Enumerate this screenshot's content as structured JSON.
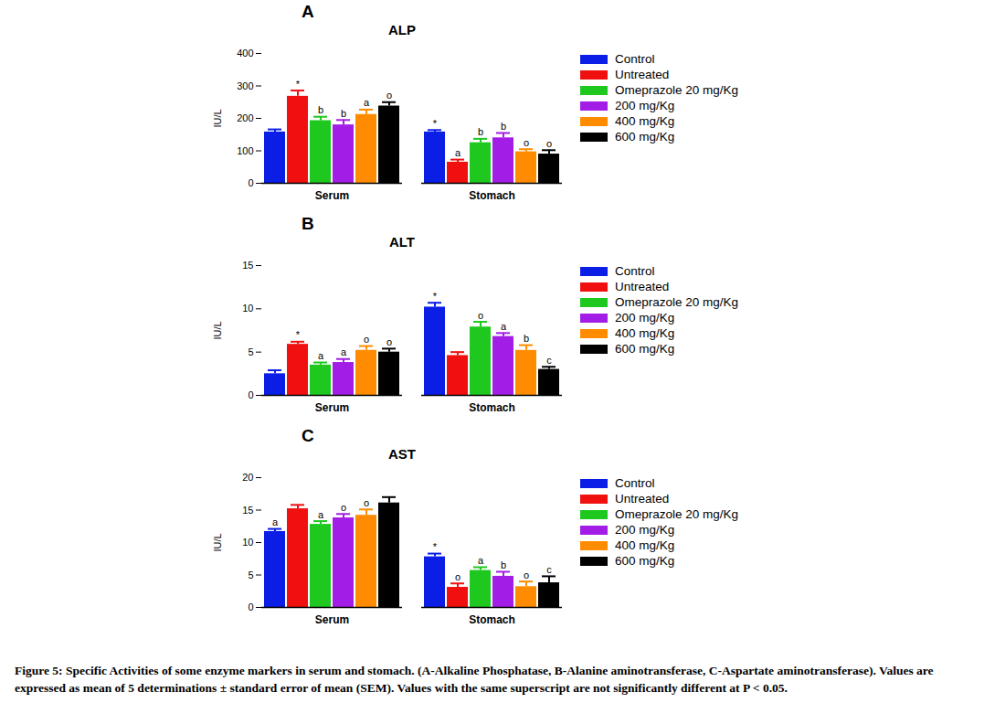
{
  "caption": "Figure 5: Specific Activities of some enzyme markers in serum and stomach. (A-Alkaline Phosphatase, B-Alanine aminotransferase, C-Aspartate aminotransferase). Values are expressed as mean of 5 determinations ± standard error of mean (SEM). Values with the same superscript are not significantly different at P < 0.05.",
  "chart_data": [
    {
      "type": "bar",
      "panel": "A",
      "title": "ALP",
      "y_label": "IU/L",
      "categories": [
        "Serum",
        "Stomach"
      ],
      "ylim": [
        0,
        400
      ],
      "yticks": [
        0,
        100,
        200,
        300,
        400
      ],
      "legend": "right",
      "series": [
        {
          "name": "Control",
          "color": "#0a1ee6",
          "values": [
            158,
            158
          ],
          "errors": [
            8,
            6
          ],
          "superscripts": [
            null,
            "*"
          ]
        },
        {
          "name": "Untreated",
          "color": "#f01010",
          "values": [
            268,
            65
          ],
          "errors": [
            18,
            8
          ],
          "superscripts": [
            "*",
            "a"
          ]
        },
        {
          "name": "Omeprazole 20 mg/Kg",
          "color": "#1ec81e",
          "values": [
            193,
            125
          ],
          "errors": [
            12,
            12
          ],
          "superscripts": [
            "b",
            "b"
          ]
        },
        {
          "name": "200 mg/Kg",
          "color": "#a21ee6",
          "values": [
            180,
            140
          ],
          "errors": [
            15,
            15
          ],
          "superscripts": [
            "b",
            "b"
          ]
        },
        {
          "name": "400 mg/Kg",
          "color": "#ff8c00",
          "values": [
            212,
            97
          ],
          "errors": [
            15,
            8
          ],
          "superscripts": [
            "a",
            "o"
          ]
        },
        {
          "name": "600 mg/Kg",
          "color": "#000000",
          "values": [
            238,
            90
          ],
          "errors": [
            12,
            12
          ],
          "superscripts": [
            "o",
            "o"
          ]
        }
      ]
    },
    {
      "type": "bar",
      "panel": "B",
      "title": "ALT",
      "y_label": "IU/L",
      "categories": [
        "Serum",
        "Stomach"
      ],
      "ylim": [
        0,
        15
      ],
      "yticks": [
        0,
        5,
        10,
        15
      ],
      "legend": "right",
      "series": [
        {
          "name": "Control",
          "color": "#0a1ee6",
          "values": [
            2.5,
            10.2
          ],
          "errors": [
            0.4,
            0.5
          ],
          "superscripts": [
            null,
            "*"
          ]
        },
        {
          "name": "Untreated",
          "color": "#f01010",
          "values": [
            5.9,
            4.6
          ],
          "errors": [
            0.3,
            0.4
          ],
          "superscripts": [
            "*",
            null
          ]
        },
        {
          "name": "Omeprazole 20 mg/Kg",
          "color": "#1ec81e",
          "values": [
            3.5,
            7.9
          ],
          "errors": [
            0.3,
            0.6
          ],
          "superscripts": [
            "a",
            "o"
          ]
        },
        {
          "name": "200 mg/Kg",
          "color": "#a21ee6",
          "values": [
            3.8,
            6.8
          ],
          "errors": [
            0.4,
            0.4
          ],
          "superscripts": [
            "a",
            "a"
          ]
        },
        {
          "name": "400 mg/Kg",
          "color": "#ff8c00",
          "values": [
            5.2,
            5.2
          ],
          "errors": [
            0.5,
            0.6
          ],
          "superscripts": [
            "o",
            "b"
          ]
        },
        {
          "name": "600 mg/Kg",
          "color": "#000000",
          "values": [
            5.0,
            3.0
          ],
          "errors": [
            0.4,
            0.3
          ],
          "superscripts": [
            "o",
            "c"
          ]
        }
      ]
    },
    {
      "type": "bar",
      "panel": "C",
      "title": "AST",
      "y_label": "IU/L",
      "categories": [
        "Serum",
        "Stomach"
      ],
      "ylim": [
        0,
        20
      ],
      "yticks": [
        0,
        5,
        10,
        15,
        20
      ],
      "legend": "right",
      "series": [
        {
          "name": "Control",
          "color": "#0a1ee6",
          "values": [
            11.7,
            7.8
          ],
          "errors": [
            0.4,
            0.5
          ],
          "superscripts": [
            "a",
            "*"
          ]
        },
        {
          "name": "Untreated",
          "color": "#f01010",
          "values": [
            15.2,
            3.1
          ],
          "errors": [
            0.6,
            0.6
          ],
          "superscripts": [
            null,
            "o"
          ]
        },
        {
          "name": "Omeprazole 20 mg/Kg",
          "color": "#1ec81e",
          "values": [
            12.8,
            5.7
          ],
          "errors": [
            0.5,
            0.5
          ],
          "superscripts": [
            "a",
            "a"
          ]
        },
        {
          "name": "200 mg/Kg",
          "color": "#a21ee6",
          "values": [
            13.8,
            4.8
          ],
          "errors": [
            0.6,
            0.7
          ],
          "superscripts": [
            "o",
            "b"
          ]
        },
        {
          "name": "400 mg/Kg",
          "color": "#ff8c00",
          "values": [
            14.2,
            3.2
          ],
          "errors": [
            0.9,
            0.8
          ],
          "superscripts": [
            "o",
            "o"
          ]
        },
        {
          "name": "600 mg/Kg",
          "color": "#000000",
          "values": [
            16.1,
            3.8
          ],
          "errors": [
            0.9,
            1.0
          ],
          "superscripts": [
            null,
            "c"
          ]
        }
      ]
    }
  ]
}
